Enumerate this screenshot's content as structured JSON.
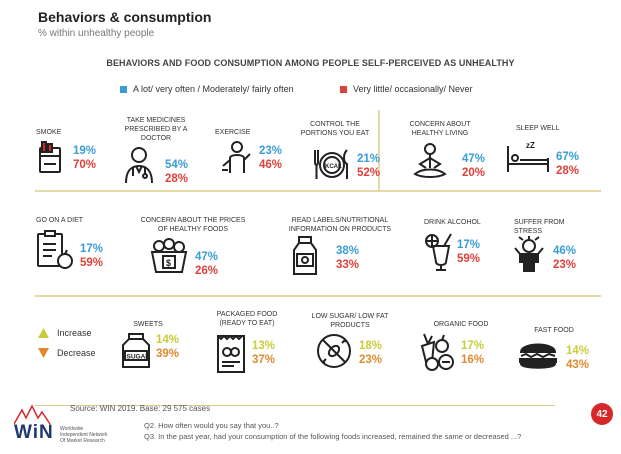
{
  "header": {
    "title": "Behaviors & consumption",
    "subtitle": "% within unhealthy people"
  },
  "section_title": "BEHAVIORS AND FOOD CONSUMPTION AMONG PEOPLE SELF-PERCEIVED AS UNHEALTHY",
  "legend": {
    "often": "A lot/ very often / Moderately/ fairly often",
    "rarely": "Very little/ occasionally/ Never",
    "often_color": "#3a9dd4",
    "rarely_color": "#e0403a"
  },
  "trend_legend": {
    "increase": "Increase",
    "decrease": "Decrease",
    "increase_color": "#c9cc3a",
    "decrease_color": "#e08a2e"
  },
  "chart_data": {
    "type": "table",
    "behaviors": [
      {
        "label": "SMOKE",
        "often": "19%",
        "rarely": "70%",
        "icon": "cigarette-pack-icon"
      },
      {
        "label": "TAKE MEDICINES PRESCRIBED BY A DOCTOR",
        "often": "54%",
        "rarely": "28%",
        "icon": "doctor-icon"
      },
      {
        "label": "EXERCISE",
        "often": "23%",
        "rarely": "46%",
        "icon": "runner-icon"
      },
      {
        "label": "CONTROL THE PORTIONS YOU EAT",
        "often": "21%",
        "rarely": "52%",
        "icon": "kcal-plate-icon"
      },
      {
        "label": "CONCERN ABOUT HEALTHY LIVING",
        "often": "47%",
        "rarely": "20%",
        "icon": "meditation-icon"
      },
      {
        "label": "SLEEP WELL",
        "often": "67%",
        "rarely": "28%",
        "icon": "bed-icon"
      },
      {
        "label": "GO ON A DIET",
        "often": "17%",
        "rarely": "59%",
        "icon": "diet-clipboard-icon"
      },
      {
        "label": "CONCERN ABOUT THE PRICES OF HEALTHY FOODS",
        "often": "47%",
        "rarely": "26%",
        "icon": "price-basket-icon"
      },
      {
        "label": "READ LABELS/NUTRITIONAL INFORMATION ON PRODUCTS",
        "often": "38%",
        "rarely": "33%",
        "icon": "label-bottle-icon"
      },
      {
        "label": "DRINK ALCOHOL",
        "often": "17%",
        "rarely": "59%",
        "icon": "cocktail-icon"
      },
      {
        "label": "SUFFER FROM STRESS",
        "often": "46%",
        "rarely": "23%",
        "icon": "stress-icon"
      }
    ],
    "consumption": [
      {
        "label": "SWEETS",
        "increase": "14%",
        "decrease": "39%",
        "icon": "sugar-jar-icon"
      },
      {
        "label": "PACKAGED FOOD (READY TO EAT)",
        "increase": "13%",
        "decrease": "37%",
        "icon": "packaged-food-icon"
      },
      {
        "label": "LOW SUGAR/ LOW FAT PRODUCTS",
        "increase": "18%",
        "decrease": "23%",
        "icon": "no-candy-icon"
      },
      {
        "label": "ORGANIC FOOD",
        "increase": "17%",
        "decrease": "16%",
        "icon": "vegetables-icon"
      },
      {
        "label": "FAST FOOD",
        "increase": "14%",
        "decrease": "43%",
        "icon": "burger-icon"
      }
    ]
  },
  "footer": {
    "source": "Source: WIN 2019. Base: 29 575 cases",
    "q2": "Q2. How often would you say that you..?",
    "q3": "Q3. In the past year, had your consumption of the following foods increased, remained the same or decreased ...?",
    "logo": "WiN",
    "logo_sub1": "Worldwide",
    "logo_sub2": "Independent Network",
    "logo_sub3": "Of Market Research",
    "page_number": "42"
  }
}
